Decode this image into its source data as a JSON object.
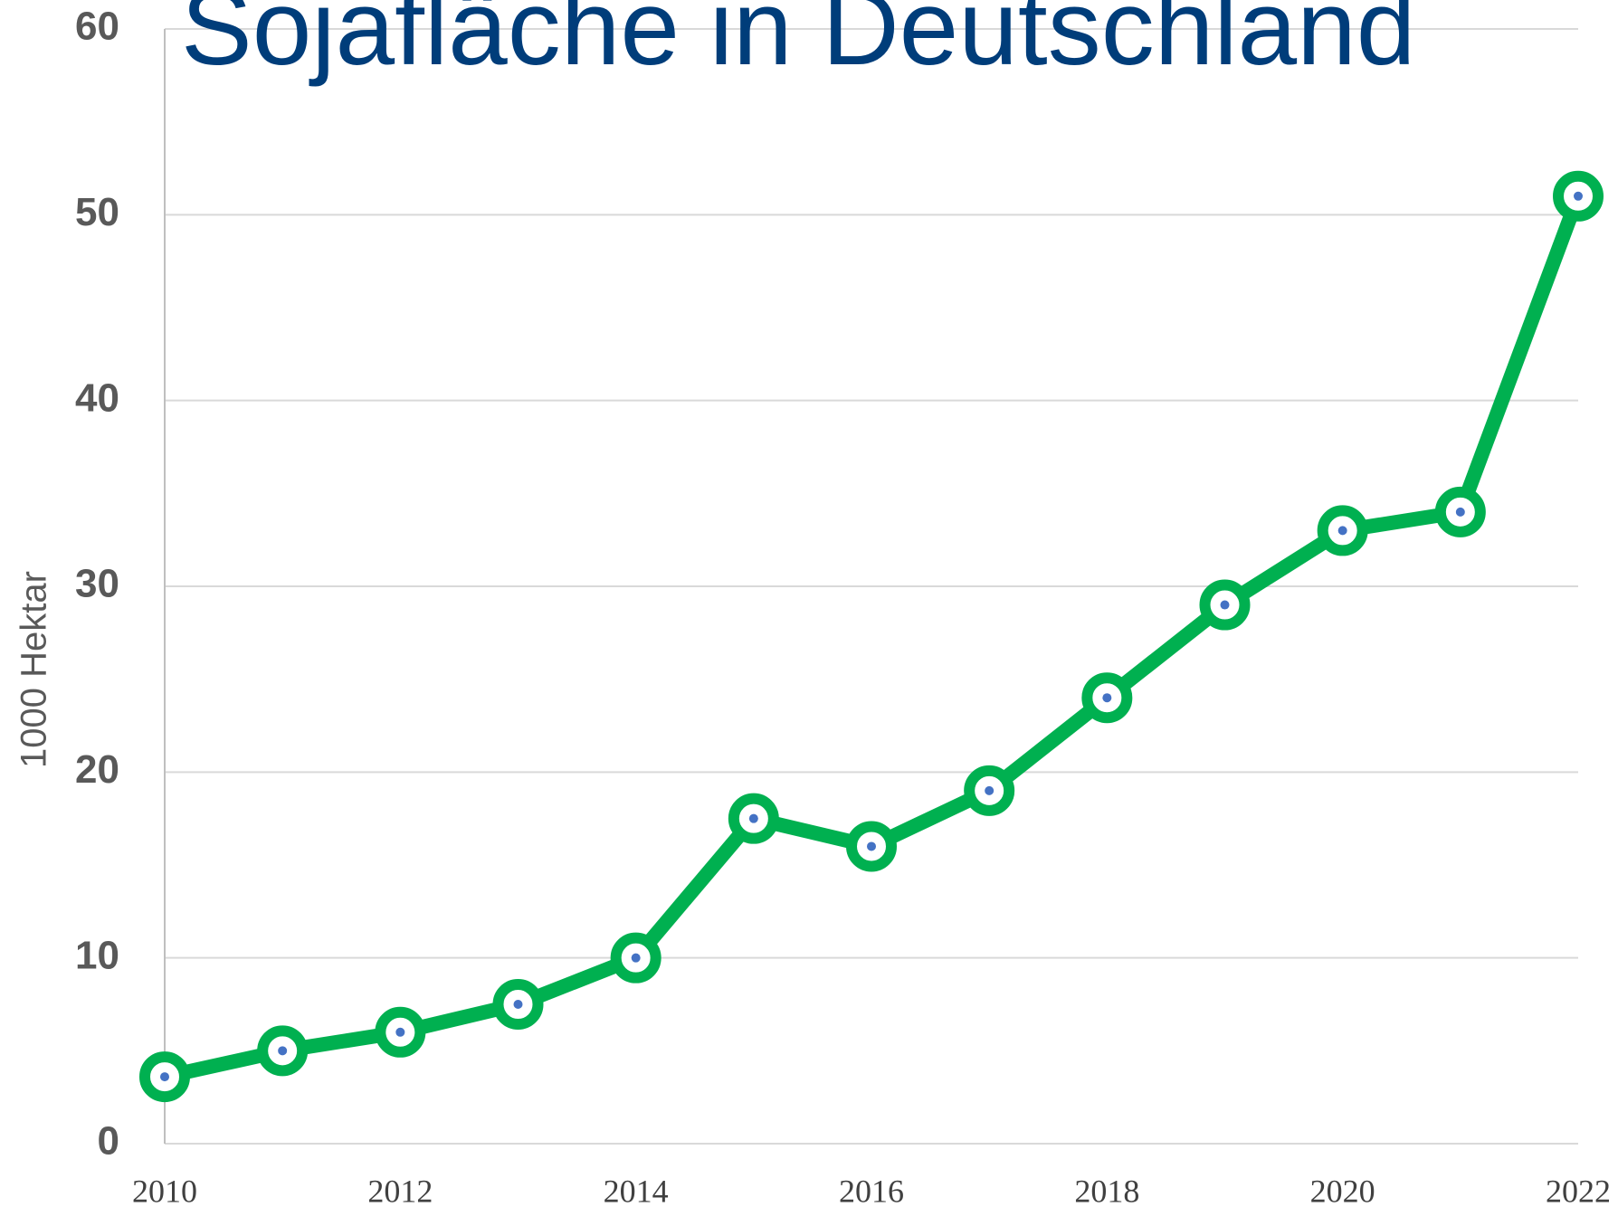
{
  "chart_data": {
    "type": "line",
    "title": "Sojafläche in Deutschland",
    "y_label": "1000 Hektar",
    "x": [
      2010,
      2011,
      2012,
      2013,
      2014,
      2015,
      2016,
      2017,
      2018,
      2019,
      2020,
      2021,
      2022
    ],
    "series": [
      {
        "name": "Sojafläche",
        "color": "#00b050",
        "marker_center_color": "#4472c4",
        "values": [
          3.6,
          5.0,
          6.0,
          7.5,
          10.0,
          17.5,
          16.0,
          19.0,
          24.0,
          29.0,
          33.0,
          34.0,
          51.0
        ]
      }
    ],
    "xlim": [
      2010,
      2022
    ],
    "xticks": [
      2010,
      2012,
      2014,
      2016,
      2018,
      2020,
      2022
    ],
    "ylim": [
      0,
      60
    ],
    "yticks": [
      0,
      10,
      20,
      30,
      40,
      50,
      60
    ],
    "grid": true
  }
}
